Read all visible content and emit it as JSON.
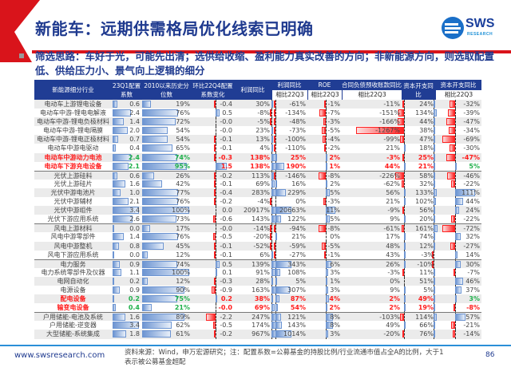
{
  "title": "新能车：远期供需格局优化线索已明确",
  "logo": {
    "name": "SWS",
    "sub": "RESEARCH"
  },
  "description": "筛选思路：车好于光，可能先出清；选供给收缩、盈利能力真实改善的方向；非新能源方向，则选取配置低、供给压力小、景气向上逻辑的细分",
  "headers": {
    "name": "新能源细分行业",
    "coef": "23Q1配置系数",
    "pct": "2010以来历史分位数",
    "chg": "环比22Q4配置系数变化",
    "profit": "利润同比",
    "profit_vs": "利润同比",
    "roe": "ROE",
    "contract": "合同负债预收账款同比",
    "capex": "资本开支同比",
    "capex_vs": "资本开支同比",
    "vs22q3": "相比22Q3"
  },
  "rows": [
    {
      "name": "电动车上游锂电设备",
      "coef": "0.6",
      "pct": "19%",
      "chg": "-0.4",
      "profit": "30%",
      "profit_vs": "-61%",
      "roe": "-1%",
      "contract": "-11%",
      "capex": "24%",
      "capex_vs": "-32%"
    },
    {
      "name": "电动车中游-锂电电解液",
      "coef": "2.4",
      "pct": "76%",
      "chg": "0.5",
      "profit": "-8%",
      "profit_vs": "-134%",
      "roe": "-7%",
      "contract": "-151%",
      "capex": "134%",
      "capex_vs": "-39%"
    },
    {
      "name": "电动车中游-锂电负极材料",
      "coef": "1.4",
      "pct": "72%",
      "chg": "-0.0",
      "profit": "-5%",
      "profit_vs": "-48%",
      "roe": "-3%",
      "contract": "-166%",
      "capex": "44%",
      "capex_vs": "-47%"
    },
    {
      "name": "电动车中游-锂电隔膜",
      "coef": "2.0",
      "pct": "54%",
      "chg": "-0.0",
      "profit": "23%",
      "profit_vs": "-73%",
      "roe": "-5%",
      "contract": "-1267%",
      "capex": "38%",
      "capex_vs": "-34%"
    },
    {
      "name": "电动车中游-锂电正极材料",
      "coef": "0.7",
      "pct": "54%",
      "chg": "-0.1",
      "profit": "13%",
      "profit_vs": "-100%",
      "roe": "-4%",
      "contract": "-99%",
      "capex": "47%",
      "capex_vs": "-69%"
    },
    {
      "name": "电动车中游电驱动",
      "coef": "0.4",
      "pct": "65%",
      "chg": "-0.1",
      "profit": "4%",
      "profit_vs": "-110%",
      "roe": "-2%",
      "contract": "21%",
      "capex": "18%",
      "capex_vs": "-30%"
    },
    {
      "name": "电动车中游动力电池",
      "coef": "2.4",
      "pct": "74%",
      "chg": "-0.3",
      "profit": "138%",
      "profit_vs": "25%",
      "roe": "2%",
      "contract": "-3%",
      "capex": "25%",
      "capex_vs": "-47%",
      "hl": true
    },
    {
      "name": "电动车下游充电设备",
      "coef": "2.1",
      "pct": "95%",
      "chg": "1.5",
      "profit": "138%",
      "profit_vs": "190%",
      "roe": "1%",
      "contract": "44%",
      "capex": "21%",
      "capex_vs": "5%",
      "hl": true,
      "capex_vs_green": true
    },
    {
      "name": "光伏上游硅料",
      "coef": "0.6",
      "pct": "26%",
      "chg": "-0.2",
      "profit": "113%",
      "profit_vs": "-146%",
      "roe": "-8%",
      "contract": "-226%",
      "capex": "58%",
      "capex_vs": "-46%",
      "sep": true
    },
    {
      "name": "光伏上游硅片",
      "coef": "1.6",
      "pct": "42%",
      "chg": "-0.1",
      "profit": "69%",
      "profit_vs": "16%",
      "roe": "2%",
      "contract": "-62%",
      "capex": "32%",
      "capex_vs": "-22%"
    },
    {
      "name": "光伏中游电池片",
      "coef": "1.0",
      "pct": "77%",
      "chg": "-0.4",
      "profit": "283%",
      "profit_vs": "229%",
      "roe": "5%",
      "contract": "56%",
      "capex": "133%",
      "capex_vs": "111%"
    },
    {
      "name": "光伏中游辅材",
      "coef": "2.1",
      "pct": "76%",
      "chg": "-0.2",
      "profit": "-4%",
      "profit_vs": "0%",
      "roe": "-3%",
      "contract": "21%",
      "capex": "102%",
      "capex_vs": "44%"
    },
    {
      "name": "光伏中游组件",
      "coef": "3.4",
      "pct": "100%",
      "chg": "0.0",
      "profit": "20917%",
      "profit_vs": "20663%",
      "roe": "11%",
      "contract": "-9%",
      "capex": "56%",
      "capex_vs": "24%"
    },
    {
      "name": "光伏下游应用系统",
      "coef": "2.6",
      "pct": "73%",
      "chg": "-0.6",
      "profit": "143%",
      "profit_vs": "122%",
      "roe": "5%",
      "contract": "9%",
      "capex": "20%",
      "capex_vs": "-22%"
    },
    {
      "name": "风电上游材料",
      "coef": "0.0",
      "pct": "17%",
      "chg": "-0.0",
      "profit": "-14%",
      "profit_vs": "-94%",
      "roe": "-8%",
      "contract": "-61%",
      "capex": "161%",
      "capex_vs": "-72%",
      "sep": true
    },
    {
      "name": "风电中游零部件",
      "coef": "1.4",
      "pct": "76%",
      "chg": "-0.5",
      "profit": "-20%",
      "profit_vs": "21%",
      "roe": "0%",
      "contract": "17%",
      "capex": "74%",
      "capex_vs": "32%"
    },
    {
      "name": "风电中游整机",
      "coef": "0.8",
      "pct": "45%",
      "chg": "-0.1",
      "profit": "-52%",
      "profit_vs": "-59%",
      "roe": "-5%",
      "contract": "48%",
      "capex": "12%",
      "capex_vs": "-27%"
    },
    {
      "name": "风电下游应用系统",
      "coef": "0.0",
      "pct": "12%",
      "chg": "-0.1",
      "profit": "6%",
      "profit_vs": "-27%",
      "roe": "-1%",
      "contract": "43%",
      "capex": "-3%",
      "capex_vs": "14%"
    },
    {
      "name": "电力服务",
      "coef": "0.9",
      "pct": "74%",
      "chg": "0.5",
      "profit": "139%",
      "profit_vs": "343%",
      "roe": "6%",
      "contract": "26%",
      "capex": "-10%",
      "capex_vs": "30%",
      "sep": true
    },
    {
      "name": "电力系统零部件及仪器",
      "coef": "1.1",
      "pct": "100%",
      "chg": "0.1",
      "profit": "91%",
      "profit_vs": "108%",
      "roe": "3%",
      "contract": "-3%",
      "capex": "11%",
      "capex_vs": "-7%"
    },
    {
      "name": "电网自动化",
      "coef": "0.2",
      "pct": "12%",
      "chg": "-0.3",
      "profit": "28%",
      "profit_vs": "5%",
      "roe": "1%",
      "contract": "0%",
      "capex": "51%",
      "capex_vs": "46%"
    },
    {
      "name": "电源设备",
      "coef": "0.9",
      "pct": "90%",
      "chg": "-0.9",
      "profit": "163%",
      "profit_vs": "307%",
      "roe": "3%",
      "contract": "9%",
      "capex": "5%",
      "capex_vs": "37%"
    },
    {
      "name": "配电设备",
      "coef": "0.2",
      "pct": "75%",
      "chg": "0.2",
      "profit": "38%",
      "profit_vs": "87%",
      "roe": "4%",
      "contract": "2%",
      "capex": "49%",
      "capex_vs": "3%",
      "hl": true,
      "capex_vs_green": true
    },
    {
      "name": "输变电设备",
      "coef": "0.4",
      "pct": "21%",
      "chg": "-0.0",
      "profit": "69%",
      "profit_vs": "54%",
      "roe": "2%",
      "contract": "2%",
      "capex": "19%",
      "capex_vs": "-8%",
      "hl": true
    },
    {
      "name": "户用储能-电池及系统",
      "coef": "1.6",
      "pct": "89%",
      "chg": "-2.2",
      "profit": "247%",
      "profit_vs": "121%",
      "roe": "8%",
      "contract": "-103%",
      "capex": "114%",
      "capex_vs": "57%",
      "sep": true
    },
    {
      "name": "户用储能-逆变器",
      "coef": "3.4",
      "pct": "62%",
      "chg": "-0.5",
      "profit": "174%",
      "profit_vs": "143%",
      "roe": "8%",
      "contract": "49%",
      "capex": "66%",
      "capex_vs": "-21%"
    },
    {
      "name": "大型储能-系统集成",
      "coef": "1.8",
      "pct": "61%",
      "chg": "-0.2",
      "profit": "967%",
      "profit_vs": "1014%",
      "roe": "3%",
      "contract": "-20%",
      "capex": "76%",
      "capex_vs": "-14%"
    }
  ],
  "footer": {
    "website": "www.swsresearch.com",
    "source": "资料来源：Wind，申万宏源研究；注：配置系数=公募基金的持股比例/行业流通市值占全A的比例，大于1表示被公募基金超配",
    "page": "86"
  }
}
